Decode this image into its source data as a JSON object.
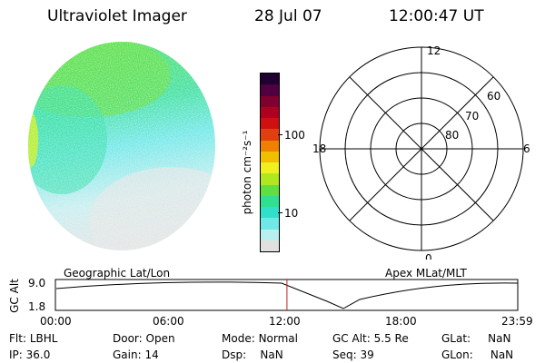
{
  "header": {
    "instrument": "Ultraviolet Imager",
    "date": "28 Jul 07",
    "time": "12:00:47 UT"
  },
  "colorbar": {
    "unit_label": "photon cm⁻²s⁻¹",
    "ticks": [
      {
        "label": "100",
        "value": 100
      },
      {
        "label": "10",
        "value": 10
      }
    ],
    "colors": [
      "#e0e0e0",
      "#b8f0f0",
      "#70e8e8",
      "#30e0c8",
      "#30e090",
      "#60e040",
      "#b0e820",
      "#f0f020",
      "#f0c000",
      "#f08000",
      "#e04010",
      "#d01010",
      "#b00020",
      "#800030",
      "#500040",
      "#200030"
    ]
  },
  "polar_plot": {
    "mlt_labels": {
      "top": "12",
      "left": "18",
      "right": "6",
      "bottom": "0"
    },
    "mlat_labels": [
      "60",
      "70",
      "80"
    ]
  },
  "timeline": {
    "left_title": "Geographic Lat/Lon",
    "right_title": "Apex MLat/MLT",
    "y_axis_label": "GC Alt",
    "y_ticks": [
      "9.0",
      "1.8"
    ],
    "x_ticks": [
      "00:00",
      "06:00",
      "12:00",
      "18:00",
      "23:59"
    ],
    "current_time_marker_hours": 12.01
  },
  "info": {
    "flt": {
      "label": "Flt:",
      "value": "LBHL"
    },
    "ip": {
      "label": "IP:",
      "value": "36.0"
    },
    "door": {
      "label": "Door:",
      "value": "Open"
    },
    "gain": {
      "label": "Gain:",
      "value": "14"
    },
    "mode": {
      "label": "Mode:",
      "value": "Normal"
    },
    "dsp": {
      "label": "Dsp:",
      "value": "NaN"
    },
    "gcalt": {
      "label": "GC Alt:",
      "value": "5.5 Re"
    },
    "seq": {
      "label": "Seq:",
      "value": "39"
    },
    "glat": {
      "label": "GLat:",
      "value": "NaN"
    },
    "glon": {
      "label": "GLon:",
      "value": "NaN"
    }
  }
}
